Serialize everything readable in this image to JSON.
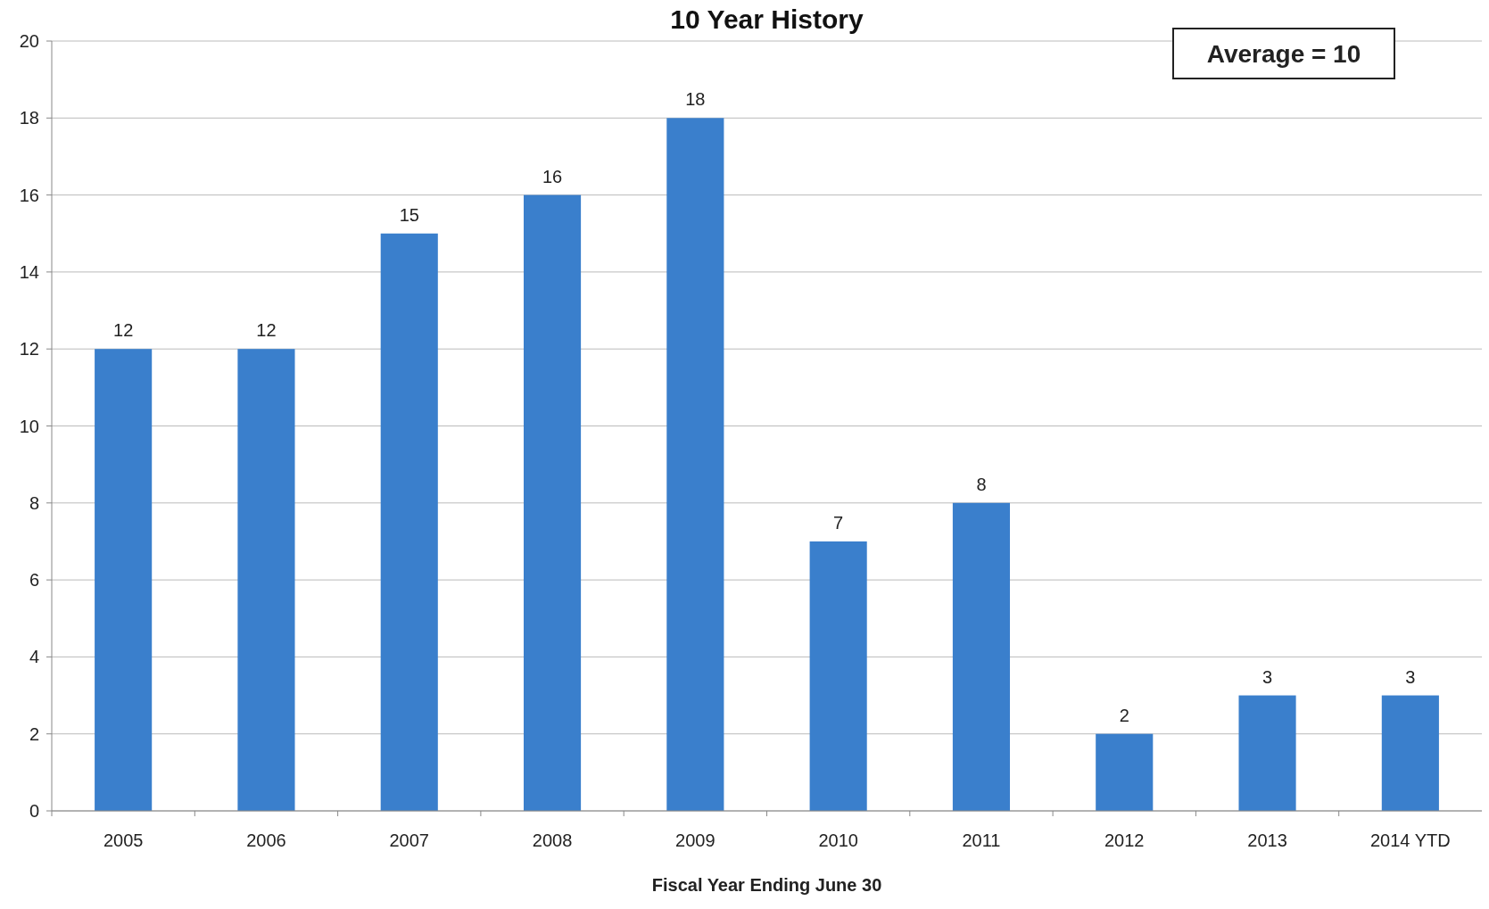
{
  "chart_data": {
    "type": "bar",
    "title": "10 Year History",
    "xlabel": "Fiscal Year Ending June 30",
    "categories": [
      "2005",
      "2006",
      "2007",
      "2008",
      "2009",
      "2010",
      "2011",
      "2012",
      "2013",
      "2014 YTD"
    ],
    "values": [
      12,
      12,
      15,
      16,
      18,
      7,
      8,
      2,
      3,
      3
    ],
    "color": "#3a7fcc",
    "ylim": [
      0,
      20
    ],
    "yticks": [
      0,
      2,
      4,
      6,
      8,
      10,
      12,
      14,
      16,
      18,
      20
    ],
    "grid": "y",
    "data_labels": true,
    "annotations": [
      "Average = 10"
    ]
  }
}
